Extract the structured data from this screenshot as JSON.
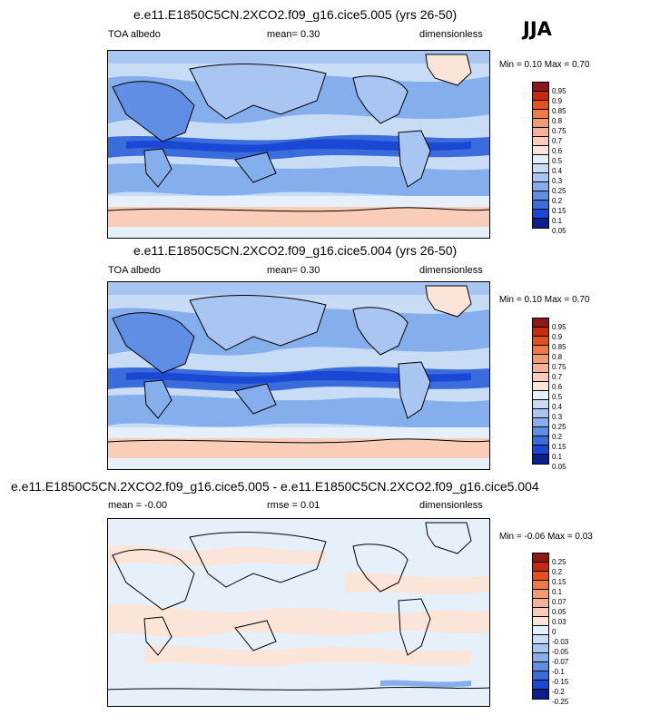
{
  "season": "JJA",
  "panels": [
    {
      "title": "e.e11.E1850C5CN.2XCO2.f09_g16.cice5.005 (yrs 26-50)",
      "variable": "TOA albedo",
      "stat": "mean=  0.30",
      "units": "dimensionless",
      "min_label": "Min =",
      "min_value": "0.10",
      "max_label": "Max =",
      "max_value": "0.70",
      "colorbar_labels": [
        "0.95",
        "0.9",
        "0.85",
        "0.8",
        "0.75",
        "0.7",
        "0.6",
        "0.5",
        "0.4",
        "0.3",
        "0.25",
        "0.2",
        "0.15",
        "0.1",
        "0.05"
      ],
      "colorbar_colors": [
        "#8e1717",
        "#c92a0f",
        "#e6501c",
        "#f07a45",
        "#f39a70",
        "#f6b196",
        "#f9cdb8",
        "#fbe5d9",
        "#e6f0fb",
        "#c8dcf6",
        "#a8c6f1",
        "#85aeec",
        "#5f8ee4",
        "#3a6cdc",
        "#1a48d4",
        "#0a1f8f"
      ]
    },
    {
      "title": "e.e11.E1850C5CN.2XCO2.f09_g16.cice5.004 (yrs 26-50)",
      "variable": "TOA albedo",
      "stat": "mean=  0.30",
      "units": "dimensionless",
      "min_label": "Min =",
      "min_value": "0.10",
      "max_label": "Max =",
      "max_value": "0.70",
      "colorbar_labels": [
        "0.95",
        "0.9",
        "0.85",
        "0.8",
        "0.75",
        "0.7",
        "0.6",
        "0.5",
        "0.4",
        "0.3",
        "0.25",
        "0.2",
        "0.15",
        "0.1",
        "0.05"
      ],
      "colorbar_colors": [
        "#8e1717",
        "#c92a0f",
        "#e6501c",
        "#f07a45",
        "#f39a70",
        "#f6b196",
        "#f9cdb8",
        "#fbe5d9",
        "#e6f0fb",
        "#c8dcf6",
        "#a8c6f1",
        "#85aeec",
        "#5f8ee4",
        "#3a6cdc",
        "#1a48d4",
        "#0a1f8f"
      ]
    },
    {
      "title": "e.e11.E1850C5CN.2XCO2.f09_g16.cice5.005 - e.e11.E1850C5CN.2XCO2.f09_g16.cice5.004",
      "variable": "mean = -0.00",
      "stat": "rmse =  0.01",
      "units": "dimensionless",
      "min_label": "Min =",
      "min_value": "-0.06",
      "max_label": "Max =",
      "max_value": "0.03",
      "colorbar_labels": [
        "0.25",
        "0.2",
        "0.15",
        "0.1",
        "0.07",
        "0.05",
        "0.03",
        "0",
        "-0.03",
        "-0.05",
        "-0.07",
        "-0.1",
        "-0.15",
        "-0.2",
        "-0.25"
      ],
      "colorbar_colors": [
        "#8e1717",
        "#c92a0f",
        "#e6501c",
        "#f07a45",
        "#f39a70",
        "#f6b196",
        "#f9cdb8",
        "#fbe5d9",
        "#e6f0fb",
        "#c8dcf6",
        "#a8c6f1",
        "#85aeec",
        "#5f8ee4",
        "#3a6cdc",
        "#1a48d4",
        "#0a1f8f"
      ]
    }
  ]
}
